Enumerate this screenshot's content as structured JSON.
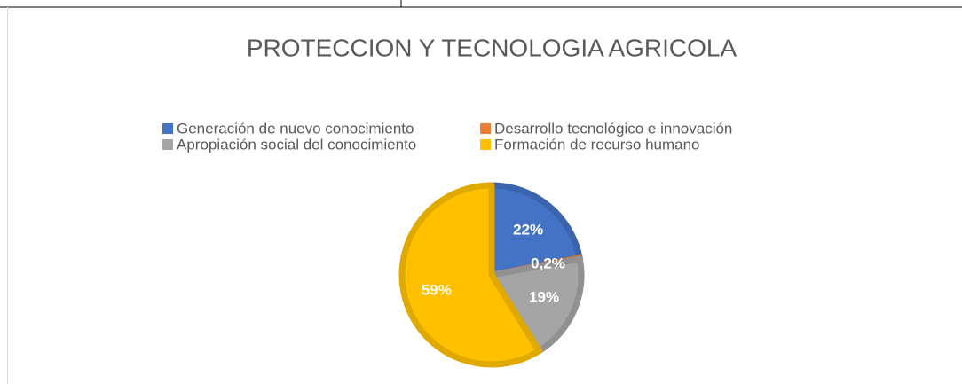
{
  "chart_data": {
    "type": "pie",
    "title": "PROTECCION Y TECNOLOGIA AGRICOLA",
    "categories": [
      "Generación de nuevo conocimiento",
      "Desarrollo tecnológico e innovación",
      "Apropiación social del conocimiento",
      "Formación de recurso humano"
    ],
    "values": [
      22,
      0.2,
      19,
      59
    ],
    "value_labels": [
      "22%",
      "0,2%",
      "19%",
      "59%"
    ],
    "colors": [
      "#4472c4",
      "#ed7d31",
      "#a5a5a5",
      "#ffc000"
    ]
  }
}
